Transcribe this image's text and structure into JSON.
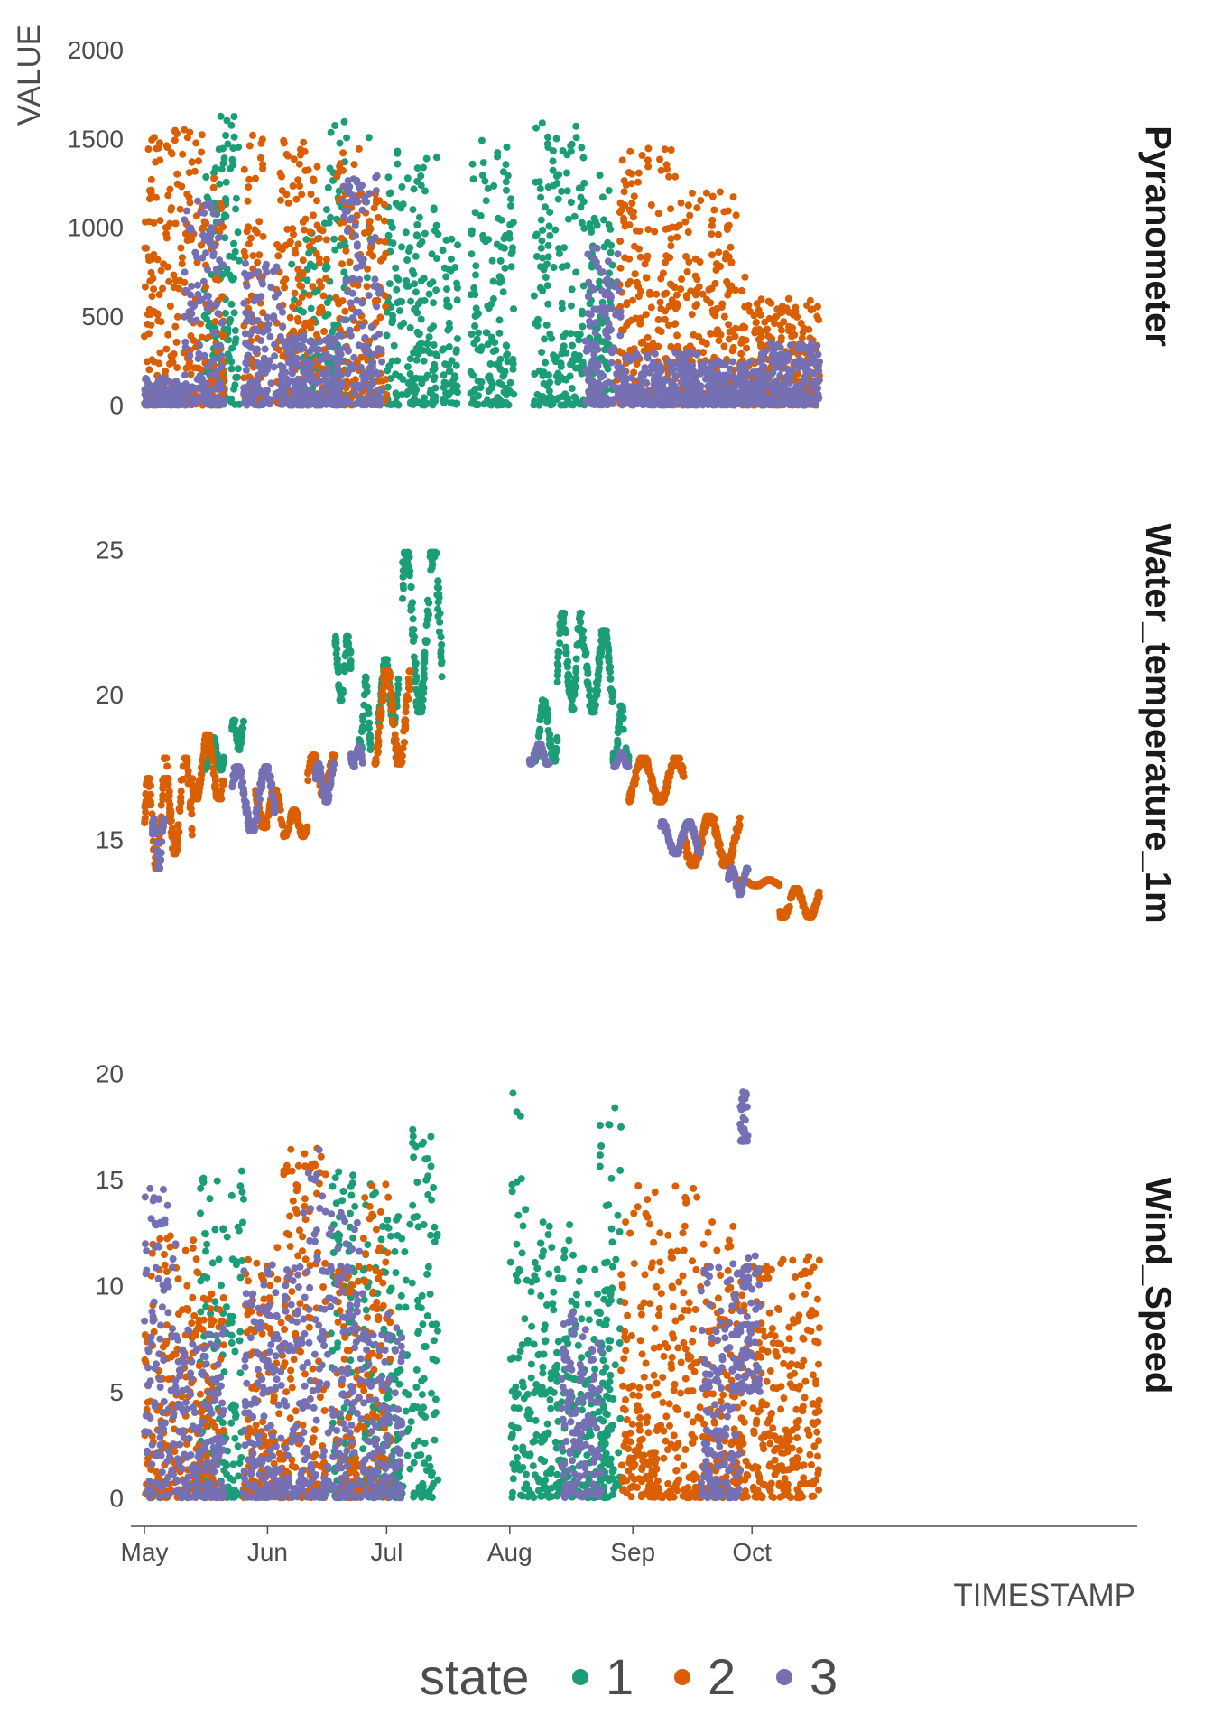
{
  "chart_data": {
    "type": "scatter",
    "xlabel": "TIMESTAMP",
    "ylabel": "VALUE",
    "x_ticks": [
      "May",
      "Jun",
      "Jul",
      "Aug",
      "Sep",
      "Oct"
    ],
    "legend": {
      "title": "state",
      "position": "bottom",
      "entries": [
        "1",
        "2",
        "3"
      ]
    },
    "colors": {
      "1": "#1b9e77",
      "2": "#d95f02",
      "3": "#7570b3"
    },
    "panels": [
      {
        "name": "Pyranometer",
        "yticks": [
          "0",
          "500",
          "1000",
          "1500",
          "2000"
        ],
        "ylim": [
          -150,
          2050
        ],
        "series": [
          {
            "state": "1",
            "segments": [
              [
                15,
                21,
                0,
                1450
              ],
              [
                19,
                24,
                0,
                1650
              ],
              [
                37,
                38,
                0,
                820
              ],
              [
                39,
                44,
                0,
                1000
              ],
              [
                45,
                51,
                0,
                1600
              ],
              [
                56,
                57,
                0,
                1600
              ],
              [
                61,
                74,
                0,
                1500
              ],
              [
                75,
                79,
                0,
                1000
              ],
              [
                82,
                93,
                0,
                1500
              ],
              [
                98,
                111,
                0,
                1600
              ],
              [
                112,
                118,
                0,
                1300
              ]
            ]
          },
          {
            "state": "2",
            "segments": [
              [
                0,
                15,
                0,
                1550
              ],
              [
                15,
                20,
                0,
                1350
              ],
              [
                25,
                30,
                0,
                1580
              ],
              [
                33,
                44,
                0,
                1500
              ],
              [
                44,
                46,
                0,
                1100
              ],
              [
                48,
                55,
                0,
                1450
              ],
              [
                55,
                61,
                0,
                1200
              ],
              [
                119,
                134,
                0,
                1450
              ],
              [
                134,
                149,
                0,
                1200
              ],
              [
                150,
                153,
                0,
                800
              ],
              [
                153,
                170,
                0,
                600
              ]
            ]
          },
          {
            "state": "3",
            "segments": [
              [
                0,
                10,
                0,
                150
              ],
              [
                10,
                20,
                0,
                1150
              ],
              [
                25,
                35,
                0,
                800
              ],
              [
                35,
                50,
                0,
                400
              ],
              [
                50,
                60,
                0,
                1300
              ],
              [
                111,
                120,
                0,
                900
              ],
              [
                120,
                140,
                0,
                300
              ],
              [
                140,
                155,
                0,
                250
              ],
              [
                155,
                170,
                0,
                350
              ]
            ]
          }
        ]
      },
      {
        "name": "Water_temperature_1m",
        "yticks": [
          "15",
          "20",
          "25"
        ],
        "ylim": [
          12.8,
          25.2
        ],
        "series": [
          {
            "state": "1",
            "segments": [
              [
                15,
                20,
                17.4,
                18.5
              ],
              [
                22,
                25,
                18.1,
                19.1
              ],
              [
                48,
                52,
                19.8,
                22.0
              ],
              [
                54,
                57,
                18.1,
                20.6
              ],
              [
                59,
                64,
                19.0,
                21.2
              ],
              [
                65,
                75,
                19.4,
                24.9
              ],
              [
                98,
                104,
                17.7,
                19.8
              ],
              [
                104,
                110,
                19.5,
                22.8
              ],
              [
                110,
                118,
                19.4,
                22.2
              ],
              [
                118,
                122,
                17.6,
                19.6
              ]
            ]
          },
          {
            "state": "2",
            "segments": [
              [
                0,
                5,
                14.0,
                17.1
              ],
              [
                5,
                12,
                14.5,
                17.8
              ],
              [
                12,
                20,
                16.4,
                18.6
              ],
              [
                28,
                35,
                15.4,
                16.7
              ],
              [
                35,
                41,
                15.1,
                16.0
              ],
              [
                41,
                48,
                16.5,
                17.9
              ],
              [
                58,
                67,
                17.6,
                20.8
              ],
              [
                122,
                136,
                16.3,
                17.8
              ],
              [
                136,
                150,
                14.1,
                15.8
              ],
              [
                150,
                160,
                13.4,
                13.6
              ],
              [
                160,
                170,
                12.3,
                13.3
              ]
            ]
          },
          {
            "state": "3",
            "segments": [
              [
                2,
                5,
                14.0,
                15.7
              ],
              [
                22,
                33,
                15.3,
                17.5
              ],
              [
                43,
                48,
                16.3,
                17.6
              ],
              [
                52,
                55,
                17.5,
                18.2
              ],
              [
                97,
                102,
                17.6,
                18.3
              ],
              [
                118,
                122,
                17.5,
                18.0
              ],
              [
                130,
                140,
                14.5,
                15.6
              ],
              [
                147,
                152,
                13.1,
                14.0
              ]
            ]
          }
        ]
      },
      {
        "name": "Wind_Speed",
        "yticks": [
          "0",
          "5",
          "10",
          "15",
          "20"
        ],
        "ylim": [
          -0.5,
          20.5
        ],
        "series": [
          {
            "state": "1",
            "segments": [
              [
                14,
                20,
                0,
                15.3
              ],
              [
                20,
                25,
                0,
                15.6
              ],
              [
                47,
                53,
                0,
                15.4
              ],
              [
                55,
                61,
                0,
                14.8
              ],
              [
                61,
                67,
                0,
                13.5
              ],
              [
                67,
                74,
                0,
                18.0
              ],
              [
                92,
                96,
                0,
                20.5
              ],
              [
                96,
                108,
                0,
                13.0
              ],
              [
                108,
                118,
                0,
                11.0
              ],
              [
                114,
                120,
                0,
                18.4
              ]
            ]
          },
          {
            "state": "2",
            "segments": [
              [
                0,
                14,
                0,
                12.6
              ],
              [
                14,
                20,
                0,
                10.0
              ],
              [
                25,
                35,
                0,
                12.0
              ],
              [
                35,
                46,
                0,
                17.3
              ],
              [
                48,
                55,
                0,
                11.0
              ],
              [
                55,
                62,
                0,
                15.0
              ],
              [
                120,
                140,
                0,
                15.0
              ],
              [
                140,
                150,
                0,
                13.0
              ],
              [
                150,
                170,
                0,
                11.5
              ]
            ]
          },
          {
            "state": "3",
            "segments": [
              [
                0,
                8,
                0,
                14.6
              ],
              [
                8,
                20,
                0,
                8.0
              ],
              [
                25,
                40,
                0,
                11.0
              ],
              [
                40,
                45,
                0,
                16.7
              ],
              [
                45,
                55,
                0,
                13.8
              ],
              [
                55,
                65,
                0,
                9.0
              ],
              [
                105,
                115,
                0,
                9.0
              ],
              [
                140,
                150,
                0,
                11.0
              ],
              [
                150,
                152,
                16.8,
                19.3
              ],
              [
                148,
                155,
                5.0,
                11.5
              ]
            ]
          }
        ]
      }
    ]
  }
}
